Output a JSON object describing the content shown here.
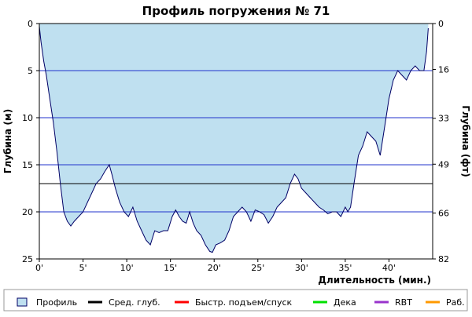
{
  "chart_data": {
    "type": "area",
    "title": "Профиль погружения № 71",
    "xlabel": "Длительность (мин.)",
    "ylabel_left": "Глубина (м)",
    "ylabel_right": "Глубина (фт)",
    "xlim": [
      0,
      45
    ],
    "ylim": [
      0,
      25
    ],
    "y_inverted": true,
    "x_tick_labels": [
      "0'",
      "5'",
      "10'",
      "15'",
      "20'",
      "25'",
      "30'",
      "35'",
      "40'"
    ],
    "x_tick_values": [
      0,
      5,
      10,
      15,
      20,
      25,
      30,
      35,
      40
    ],
    "y_left_tick_labels": [
      "0",
      "5",
      "10",
      "15",
      "20",
      "25"
    ],
    "y_left_tick_values": [
      0,
      5,
      10,
      15,
      20,
      25
    ],
    "y_right_tick_labels": [
      "0",
      "16",
      "33",
      "49",
      "66",
      "82"
    ],
    "y_right_tick_values": [
      0,
      16,
      33,
      49,
      66,
      82
    ],
    "avg_depth": 17,
    "series": [
      {
        "name": "Профиль",
        "x": [
          0,
          0.2,
          0.5,
          0.8,
          1.2,
          1.6,
          2.0,
          2.4,
          2.8,
          3.2,
          3.6,
          4.0,
          4.5,
          5.0,
          5.5,
          6.0,
          6.5,
          7.0,
          7.5,
          8.0,
          8.3,
          8.7,
          9.2,
          9.7,
          10.2,
          10.7,
          11.2,
          11.7,
          12.2,
          12.7,
          13.2,
          13.7,
          14.2,
          14.7,
          15.2,
          15.6,
          16.0,
          16.4,
          16.8,
          17.2,
          17.6,
          18.0,
          18.5,
          19.0,
          19.5,
          19.8,
          20.2,
          20.7,
          21.2,
          21.7,
          22.2,
          22.7,
          23.2,
          23.7,
          24.2,
          24.7,
          25.2,
          25.7,
          26.2,
          26.7,
          27.2,
          27.7,
          28.2,
          28.7,
          29.2,
          29.6,
          30.0,
          30.5,
          31.0,
          31.5,
          32.0,
          32.5,
          33.0,
          33.5,
          34.0,
          34.5,
          35.0,
          35.3,
          35.6,
          36.0,
          36.5,
          37.0,
          37.5,
          38.0,
          38.5,
          39.0,
          39.5,
          40.0,
          40.5,
          41.0,
          41.5,
          42.0,
          42.5,
          43.0,
          43.5,
          44.0,
          44.3,
          44.5
        ],
        "values": [
          0.3,
          2.0,
          4.0,
          5.5,
          8.0,
          10.5,
          13.5,
          17.0,
          20.0,
          21.0,
          21.5,
          21.0,
          20.5,
          20.0,
          19.0,
          18.0,
          17.0,
          16.5,
          15.7,
          15.0,
          16.0,
          17.5,
          19.0,
          20.0,
          20.5,
          19.5,
          21.0,
          22.0,
          23.0,
          23.5,
          22.0,
          22.2,
          22.0,
          22.0,
          20.5,
          19.8,
          20.5,
          21.0,
          21.2,
          20.0,
          21.2,
          22.0,
          22.5,
          23.5,
          24.2,
          24.3,
          23.5,
          23.3,
          23.0,
          22.0,
          20.5,
          20.0,
          19.5,
          20.0,
          21.0,
          19.8,
          20.0,
          20.3,
          21.2,
          20.5,
          19.5,
          19.0,
          18.5,
          17.0,
          16.0,
          16.5,
          17.5,
          18.0,
          18.5,
          19.0,
          19.5,
          19.8,
          20.2,
          20.0,
          20.0,
          20.5,
          19.5,
          20.0,
          19.5,
          17.0,
          14.0,
          13.0,
          11.5,
          12.0,
          12.5,
          14.0,
          11.0,
          8.0,
          6.0,
          5.0,
          5.5,
          6.0,
          5.0,
          4.5,
          5.0,
          5.0,
          3.0,
          0.5
        ]
      }
    ],
    "legend": [
      {
        "label": "Профиль",
        "kind": "box",
        "color": "#bfe0f0"
      },
      {
        "label": "Сред. глуб.",
        "kind": "line",
        "color": "#000000"
      },
      {
        "label": "Быстр. подъем/спуск",
        "kind": "line",
        "color": "#ff0000"
      },
      {
        "label": "Дека",
        "kind": "line",
        "color": "#00e000"
      },
      {
        "label": "RBT",
        "kind": "line",
        "color": "#9933cc"
      },
      {
        "label": "Раб.",
        "kind": "line",
        "color": "#ff9900"
      }
    ],
    "legend_position": "bottom",
    "grid": true,
    "colors": {
      "area_fill": "#bfe0f0",
      "area_stroke": "#000066",
      "gridline": "#2233cc",
      "avg_line": "#000000"
    }
  }
}
